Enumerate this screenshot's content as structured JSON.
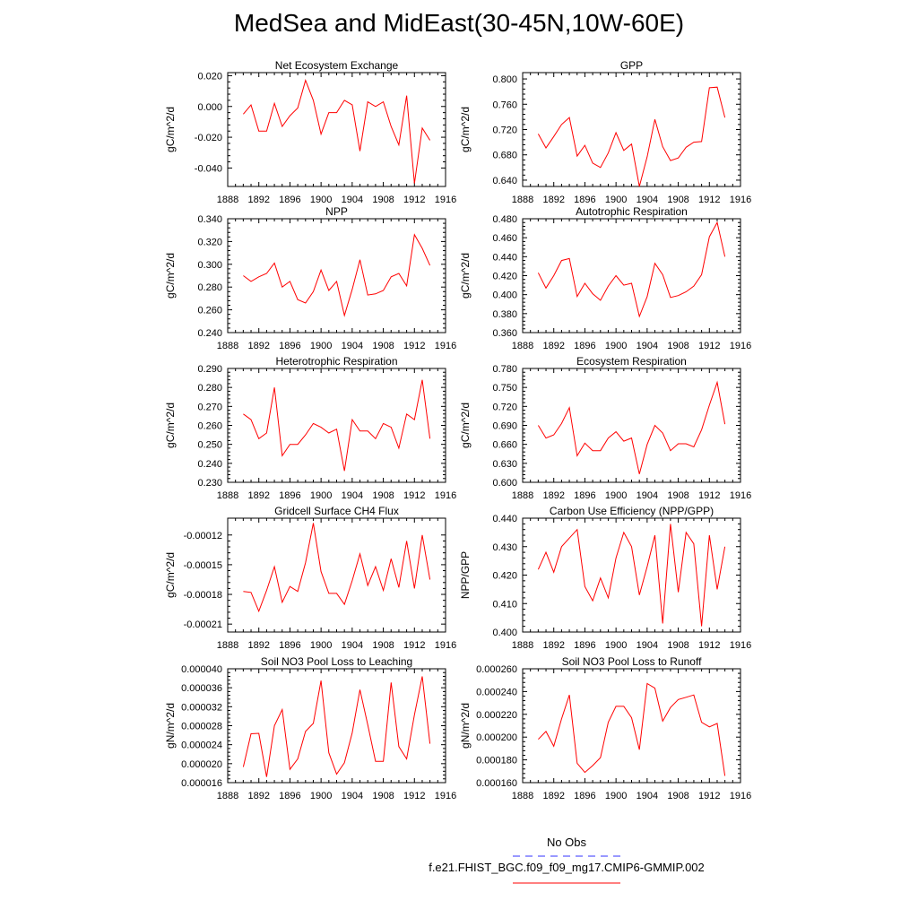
{
  "title": "MedSea and MidEast(30-45N,10W-60E)",
  "colors": {
    "model": "#ff0000",
    "obs": "#3333ff",
    "axis": "#000000"
  },
  "legend": {
    "obs_label": "No Obs",
    "model_label": "f.e21.FHIST_BGC.f09_f09_mg17.CMIP6-GMMIP.002"
  },
  "chart_data": [
    {
      "type": "line",
      "title": "Net Ecosystem Exchange",
      "ylabel": "gC/m^2/d",
      "xlabel": "",
      "xlim": [
        1888,
        1916
      ],
      "xticks": [
        1888,
        1892,
        1896,
        1900,
        1904,
        1908,
        1912,
        1916
      ],
      "ylim": [
        -0.052,
        0.022
      ],
      "yticks": [
        -0.04,
        -0.02,
        0.0,
        0.02
      ],
      "ytick_labels": [
        "-0.040",
        "-0.020",
        "0.000",
        "0.020"
      ],
      "x": [
        1890,
        1891,
        1892,
        1893,
        1894,
        1895,
        1896,
        1897,
        1898,
        1899,
        1900,
        1901,
        1902,
        1903,
        1904,
        1905,
        1906,
        1907,
        1908,
        1909,
        1910,
        1911,
        1912,
        1913,
        1914
      ],
      "series": [
        {
          "values": [
            -0.005,
            0.001,
            -0.016,
            -0.016,
            0.002,
            -0.013,
            -0.006,
            -0.001,
            0.017,
            0.004,
            -0.018,
            -0.004,
            -0.004,
            0.004,
            0.001,
            -0.029,
            0.003,
            0.0,
            0.003,
            -0.013,
            -0.025,
            0.007,
            -0.05,
            -0.014,
            -0.022
          ]
        }
      ]
    },
    {
      "type": "line",
      "title": "GPP",
      "ylabel": "gC/m^2/d",
      "xlabel": "",
      "xlim": [
        1888,
        1916
      ],
      "xticks": [
        1888,
        1892,
        1896,
        1900,
        1904,
        1908,
        1912,
        1916
      ],
      "ylim": [
        0.63,
        0.81
      ],
      "yticks": [
        0.64,
        0.68,
        0.72,
        0.76,
        0.8
      ],
      "ytick_labels": [
        "0.640",
        "0.680",
        "0.720",
        "0.760",
        "0.800"
      ],
      "x": [
        1890,
        1891,
        1892,
        1893,
        1894,
        1895,
        1896,
        1897,
        1898,
        1899,
        1900,
        1901,
        1902,
        1903,
        1904,
        1905,
        1906,
        1907,
        1908,
        1909,
        1910,
        1911,
        1912,
        1913,
        1914
      ],
      "series": [
        {
          "values": [
            0.713,
            0.691,
            0.709,
            0.728,
            0.739,
            0.678,
            0.695,
            0.667,
            0.66,
            0.683,
            0.715,
            0.687,
            0.697,
            0.63,
            0.677,
            0.736,
            0.693,
            0.671,
            0.675,
            0.692,
            0.7,
            0.701,
            0.786,
            0.787,
            0.739
          ]
        }
      ]
    },
    {
      "type": "line",
      "title": "NPP",
      "ylabel": "gC/m^2/d",
      "xlabel": "",
      "xlim": [
        1888,
        1916
      ],
      "xticks": [
        1888,
        1892,
        1896,
        1900,
        1904,
        1908,
        1912,
        1916
      ],
      "ylim": [
        0.24,
        0.34
      ],
      "yticks": [
        0.24,
        0.26,
        0.28,
        0.3,
        0.32,
        0.34
      ],
      "ytick_labels": [
        "0.240",
        "0.260",
        "0.280",
        "0.300",
        "0.320",
        "0.340"
      ],
      "x": [
        1890,
        1891,
        1892,
        1893,
        1894,
        1895,
        1896,
        1897,
        1898,
        1899,
        1900,
        1901,
        1902,
        1903,
        1904,
        1905,
        1906,
        1907,
        1908,
        1909,
        1910,
        1911,
        1912,
        1913,
        1914
      ],
      "series": [
        {
          "values": [
            0.29,
            0.285,
            0.289,
            0.292,
            0.301,
            0.28,
            0.285,
            0.269,
            0.266,
            0.276,
            0.295,
            0.277,
            0.285,
            0.255,
            0.278,
            0.304,
            0.273,
            0.274,
            0.277,
            0.289,
            0.292,
            0.281,
            0.326,
            0.314,
            0.299
          ]
        }
      ]
    },
    {
      "type": "line",
      "title": "Autotrophic Respiration",
      "ylabel": "gC/m^2/d",
      "xlabel": "",
      "xlim": [
        1888,
        1916
      ],
      "xticks": [
        1888,
        1892,
        1896,
        1900,
        1904,
        1908,
        1912,
        1916
      ],
      "ylim": [
        0.36,
        0.48
      ],
      "yticks": [
        0.36,
        0.38,
        0.4,
        0.42,
        0.44,
        0.46,
        0.48
      ],
      "ytick_labels": [
        "0.360",
        "0.380",
        "0.400",
        "0.420",
        "0.440",
        "0.460",
        "0.480"
      ],
      "x": [
        1890,
        1891,
        1892,
        1893,
        1894,
        1895,
        1896,
        1897,
        1898,
        1899,
        1900,
        1901,
        1902,
        1903,
        1904,
        1905,
        1906,
        1907,
        1908,
        1909,
        1910,
        1911,
        1912,
        1913,
        1914
      ],
      "series": [
        {
          "values": [
            0.423,
            0.407,
            0.42,
            0.436,
            0.438,
            0.398,
            0.412,
            0.401,
            0.394,
            0.409,
            0.42,
            0.41,
            0.412,
            0.377,
            0.398,
            0.433,
            0.421,
            0.397,
            0.399,
            0.403,
            0.409,
            0.421,
            0.461,
            0.476,
            0.44
          ]
        }
      ]
    },
    {
      "type": "line",
      "title": "Heterotrophic Respiration",
      "ylabel": "gC/m^2/d",
      "xlabel": "",
      "xlim": [
        1888,
        1916
      ],
      "xticks": [
        1888,
        1892,
        1896,
        1900,
        1904,
        1908,
        1912,
        1916
      ],
      "ylim": [
        0.23,
        0.29
      ],
      "yticks": [
        0.23,
        0.24,
        0.25,
        0.26,
        0.27,
        0.28,
        0.29
      ],
      "ytick_labels": [
        "0.230",
        "0.240",
        "0.250",
        "0.260",
        "0.270",
        "0.280",
        "0.290"
      ],
      "x": [
        1890,
        1891,
        1892,
        1893,
        1894,
        1895,
        1896,
        1897,
        1898,
        1899,
        1900,
        1901,
        1902,
        1903,
        1904,
        1905,
        1906,
        1907,
        1908,
        1909,
        1910,
        1911,
        1912,
        1913,
        1914
      ],
      "series": [
        {
          "values": [
            0.266,
            0.263,
            0.253,
            0.256,
            0.28,
            0.244,
            0.25,
            0.25,
            0.255,
            0.261,
            0.259,
            0.256,
            0.258,
            0.236,
            0.263,
            0.257,
            0.257,
            0.253,
            0.261,
            0.259,
            0.248,
            0.266,
            0.263,
            0.284,
            0.253
          ]
        }
      ]
    },
    {
      "type": "line",
      "title": "Ecosystem Respiration",
      "ylabel": "gC/m^2/d",
      "xlabel": "",
      "xlim": [
        1888,
        1916
      ],
      "xticks": [
        1888,
        1892,
        1896,
        1900,
        1904,
        1908,
        1912,
        1916
      ],
      "ylim": [
        0.6,
        0.78
      ],
      "yticks": [
        0.6,
        0.63,
        0.66,
        0.69,
        0.72,
        0.75,
        0.78
      ],
      "ytick_labels": [
        "0.600",
        "0.630",
        "0.660",
        "0.690",
        "0.720",
        "0.750",
        "0.780"
      ],
      "x": [
        1890,
        1891,
        1892,
        1893,
        1894,
        1895,
        1896,
        1897,
        1898,
        1899,
        1900,
        1901,
        1902,
        1903,
        1904,
        1905,
        1906,
        1907,
        1908,
        1909,
        1910,
        1911,
        1912,
        1913,
        1914
      ],
      "series": [
        {
          "values": [
            0.69,
            0.67,
            0.675,
            0.693,
            0.718,
            0.642,
            0.662,
            0.65,
            0.65,
            0.67,
            0.68,
            0.665,
            0.67,
            0.613,
            0.66,
            0.69,
            0.678,
            0.65,
            0.661,
            0.661,
            0.656,
            0.683,
            0.722,
            0.758,
            0.692
          ]
        }
      ]
    },
    {
      "type": "line",
      "title": "Gridcell Surface CH4 Flux",
      "ylabel": "gC/m^2/d",
      "xlabel": "",
      "xlim": [
        1888,
        1916
      ],
      "xticks": [
        1888,
        1892,
        1896,
        1900,
        1904,
        1908,
        1912,
        1916
      ],
      "ylim": [
        -0.000218,
        -0.000103
      ],
      "yticks": [
        -0.00021,
        -0.00018,
        -0.00015,
        -0.00012
      ],
      "ytick_labels": [
        "-0.00021",
        "-0.00018",
        "-0.00015",
        "-0.00012"
      ],
      "x": [
        1890,
        1891,
        1892,
        1893,
        1894,
        1895,
        1896,
        1897,
        1898,
        1899,
        1900,
        1901,
        1902,
        1903,
        1904,
        1905,
        1906,
        1907,
        1908,
        1909,
        1910,
        1911,
        1912,
        1913,
        1914
      ],
      "series": [
        {
          "values": [
            -0.000177,
            -0.000178,
            -0.000197,
            -0.000176,
            -0.000152,
            -0.000188,
            -0.000172,
            -0.000177,
            -0.000148,
            -0.000108,
            -0.000157,
            -0.000179,
            -0.000179,
            -0.00019,
            -0.000166,
            -0.000139,
            -0.000171,
            -0.000152,
            -0.000176,
            -0.000144,
            -0.000173,
            -0.000126,
            -0.000174,
            -0.00012,
            -0.000165
          ]
        }
      ]
    },
    {
      "type": "line",
      "title": "Carbon Use Efficiency (NPP/GPP)",
      "ylabel": "NPP/GPP",
      "xlabel": "",
      "xlim": [
        1888,
        1916
      ],
      "xticks": [
        1888,
        1892,
        1896,
        1900,
        1904,
        1908,
        1912,
        1916
      ],
      "ylim": [
        0.4,
        0.44
      ],
      "yticks": [
        0.4,
        0.41,
        0.42,
        0.43,
        0.44
      ],
      "ytick_labels": [
        "0.400",
        "0.410",
        "0.420",
        "0.430",
        "0.440"
      ],
      "x": [
        1890,
        1891,
        1892,
        1893,
        1894,
        1895,
        1896,
        1897,
        1898,
        1899,
        1900,
        1901,
        1902,
        1903,
        1904,
        1905,
        1906,
        1907,
        1908,
        1909,
        1910,
        1911,
        1912,
        1913,
        1914
      ],
      "series": [
        {
          "values": [
            0.422,
            0.428,
            0.421,
            0.43,
            0.433,
            0.436,
            0.416,
            0.411,
            0.419,
            0.412,
            0.426,
            0.435,
            0.43,
            0.413,
            0.423,
            0.434,
            0.403,
            0.438,
            0.414,
            0.435,
            0.431,
            0.402,
            0.434,
            0.415,
            0.43
          ]
        }
      ]
    },
    {
      "type": "line",
      "title": "Soil NO3 Pool Loss to Leaching",
      "ylabel": "gN/m^2/d",
      "xlabel": "",
      "xlim": [
        1888,
        1916
      ],
      "xticks": [
        1888,
        1892,
        1896,
        1900,
        1904,
        1908,
        1912,
        1916
      ],
      "ylim": [
        1.6e-05,
        4e-05
      ],
      "yticks": [
        1.6e-05,
        2e-05,
        2.4e-05,
        2.8e-05,
        3.2e-05,
        3.6e-05,
        4e-05
      ],
      "ytick_labels": [
        "0.000016",
        "0.000020",
        "0.000024",
        "0.000028",
        "0.000032",
        "0.000036",
        "0.000040"
      ],
      "x": [
        1890,
        1891,
        1892,
        1893,
        1894,
        1895,
        1896,
        1897,
        1898,
        1899,
        1900,
        1901,
        1902,
        1903,
        1904,
        1905,
        1906,
        1907,
        1908,
        1909,
        1910,
        1911,
        1912,
        1913,
        1914
      ],
      "series": [
        {
          "values": [
            1.93e-05,
            2.63e-05,
            2.64e-05,
            1.72e-05,
            2.8e-05,
            3.14e-05,
            1.88e-05,
            2.1e-05,
            2.68e-05,
            2.85e-05,
            3.75e-05,
            2.23e-05,
            1.78e-05,
            2.02e-05,
            2.65e-05,
            3.56e-05,
            2.82e-05,
            2.05e-05,
            2.05e-05,
            3.71e-05,
            2.36e-05,
            2.1e-05,
            3.03e-05,
            3.84e-05,
            2.42e-05
          ]
        }
      ]
    },
    {
      "type": "line",
      "title": "Soil NO3 Pool Loss to Runoff",
      "ylabel": "gN/m^2/d",
      "xlabel": "",
      "xlim": [
        1888,
        1916
      ],
      "xticks": [
        1888,
        1892,
        1896,
        1900,
        1904,
        1908,
        1912,
        1916
      ],
      "ylim": [
        0.00016,
        0.00026
      ],
      "yticks": [
        0.00016,
        0.00018,
        0.0002,
        0.00022,
        0.00024,
        0.00026
      ],
      "ytick_labels": [
        "0.000160",
        "0.000180",
        "0.000200",
        "0.000220",
        "0.000240",
        "0.000260"
      ],
      "x": [
        1890,
        1891,
        1892,
        1893,
        1894,
        1895,
        1896,
        1897,
        1898,
        1899,
        1900,
        1901,
        1902,
        1903,
        1904,
        1905,
        1906,
        1907,
        1908,
        1909,
        1910,
        1911,
        1912,
        1913,
        1914
      ],
      "series": [
        {
          "values": [
            0.000198,
            0.000205,
            0.000192,
            0.000216,
            0.000237,
            0.000177,
            0.000169,
            0.000175,
            0.000182,
            0.000213,
            0.000227,
            0.000227,
            0.000217,
            0.000189,
            0.000247,
            0.000243,
            0.000214,
            0.000226,
            0.000233,
            0.000235,
            0.000237,
            0.000213,
            0.000209,
            0.000212,
            0.000166
          ]
        }
      ]
    }
  ]
}
